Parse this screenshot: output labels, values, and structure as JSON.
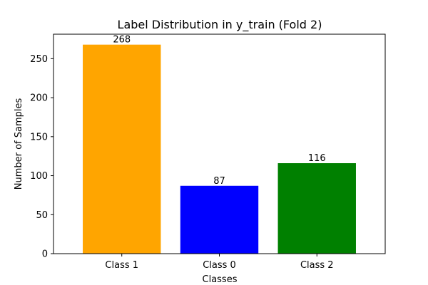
{
  "chart_data": {
    "type": "bar",
    "title": "Label Distribution in y_train (Fold 2)",
    "xlabel": "Classes",
    "ylabel": "Number of Samples",
    "categories": [
      "Class 1",
      "Class 0",
      "Class 2"
    ],
    "values": [
      268,
      87,
      116
    ],
    "colors": [
      "#FFA500",
      "#0000FF",
      "#008000"
    ],
    "data_labels": [
      "268",
      "87",
      "116"
    ],
    "ylim": [
      0,
      281.4
    ],
    "yticks": [
      0,
      50,
      100,
      150,
      200,
      250
    ],
    "ytick_labels": [
      "0",
      "50",
      "100",
      "150",
      "200",
      "250"
    ],
    "grid": false,
    "legend": "none"
  }
}
